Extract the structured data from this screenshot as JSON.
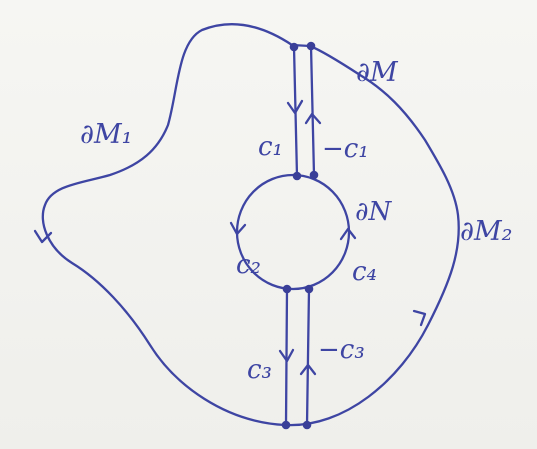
{
  "labels": {
    "boundary_M": "∂M",
    "boundary_M1": "∂M₁",
    "boundary_M2": "∂M₂",
    "boundary_N": "∂N",
    "c1": "c₁",
    "neg_c1": "−c₁",
    "c2": "c₂",
    "c3": "c₃",
    "neg_c3": "−c₃",
    "c4": "c₄"
  },
  "colors": {
    "ink": "#3e45a3",
    "paper": "#f4f4f1"
  }
}
